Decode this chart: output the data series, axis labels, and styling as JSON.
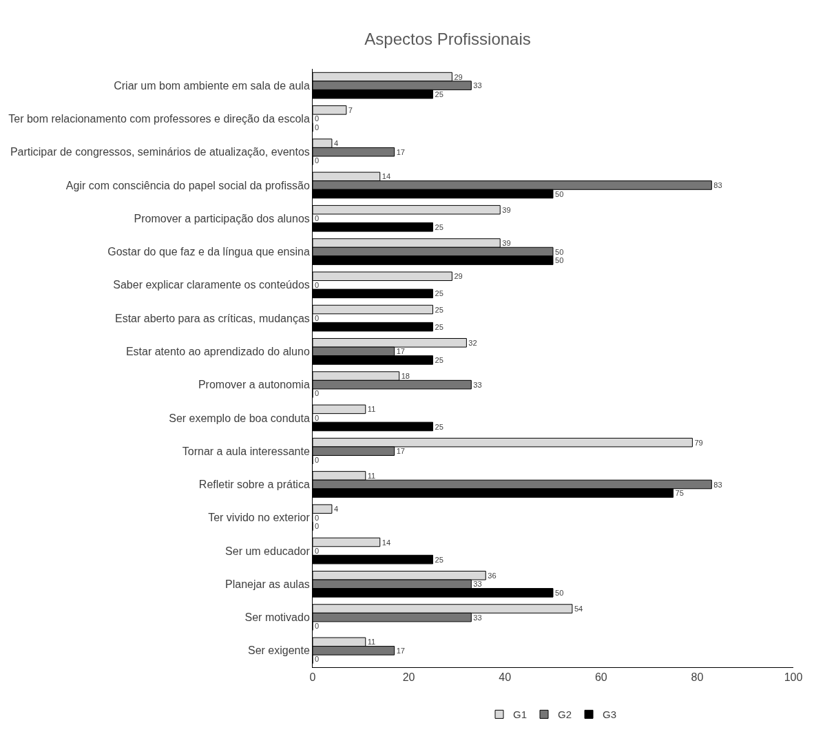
{
  "chart_data": {
    "type": "bar",
    "orientation": "horizontal",
    "title": "Aspectos Profissionais",
    "categories": [
      "Criar um bom ambiente em sala de aula",
      "Ter bom relacionamento com professores e direção da escola",
      "Participar de congressos, seminários de atualização, eventos",
      "Agir com consciência do papel social da profissão",
      "Promover a participação dos alunos",
      "Gostar do que faz e da língua que ensina",
      "Saber explicar claramente os conteúdos",
      "Estar aberto para as críticas, mudanças",
      "Estar atento ao aprendizado do aluno",
      "Promover a autonomia",
      "Ser exemplo de boa conduta",
      "Tornar a aula interessante",
      "Refletir sobre a prática",
      "Ter vivido no exterior",
      "Ser um educador",
      "Planejar as aulas",
      "Ser motivado",
      "Ser exigente"
    ],
    "series": [
      {
        "name": "G1",
        "color": "#d9d9d9",
        "values": [
          29,
          7,
          4,
          14,
          39,
          39,
          29,
          25,
          32,
          18,
          11,
          79,
          11,
          4,
          14,
          36,
          54,
          11
        ]
      },
      {
        "name": "G2",
        "color": "#767676",
        "values": [
          33,
          0,
          17,
          83,
          0,
          50,
          0,
          0,
          17,
          33,
          0,
          17,
          83,
          0,
          0,
          33,
          33,
          17
        ]
      },
      {
        "name": "G3",
        "color": "#000000",
        "values": [
          25,
          0,
          0,
          50,
          25,
          50,
          25,
          25,
          25,
          0,
          25,
          0,
          75,
          0,
          25,
          50,
          0,
          0
        ]
      }
    ],
    "xlim": [
      0,
      100
    ],
    "xticks": [
      0,
      20,
      40,
      60,
      80,
      100
    ],
    "legend": "bottom",
    "data_labels": true
  }
}
